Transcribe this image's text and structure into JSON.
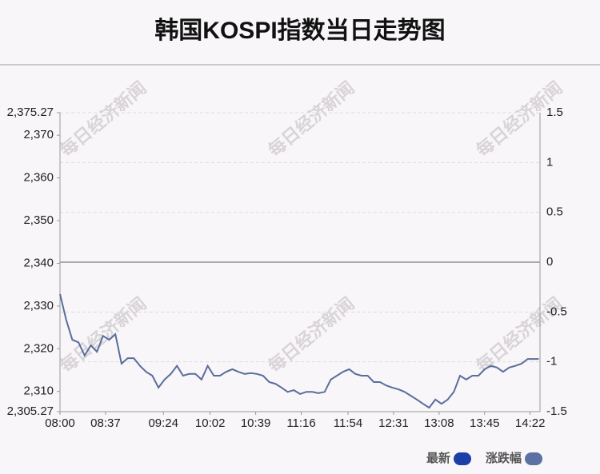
{
  "chart_data": {
    "type": "line",
    "title": "韩国KOSPI指数当日走势图",
    "watermark": "每日经济新闻",
    "x": [
      "08:00",
      "08:05",
      "08:10",
      "08:15",
      "08:20",
      "08:25",
      "08:30",
      "08:35",
      "08:40",
      "08:45",
      "08:50",
      "08:55",
      "09:00",
      "09:05",
      "09:10",
      "09:15",
      "09:20",
      "09:25",
      "09:30",
      "09:35",
      "09:40",
      "09:45",
      "09:50",
      "09:55",
      "10:00",
      "10:05",
      "10:10",
      "10:15",
      "10:20",
      "10:25",
      "10:30",
      "10:35",
      "10:40",
      "10:45",
      "10:50",
      "10:55",
      "11:00",
      "11:05",
      "11:10",
      "11:15",
      "11:20",
      "11:25",
      "11:30",
      "11:35",
      "11:40",
      "11:45",
      "11:50",
      "11:55",
      "12:00",
      "12:05",
      "12:10",
      "12:15",
      "12:20",
      "12:25",
      "12:30",
      "12:35",
      "12:40",
      "12:45",
      "12:50",
      "12:55",
      "13:00",
      "13:05",
      "13:10",
      "13:15",
      "13:20",
      "13:25",
      "13:30",
      "13:35",
      "13:40",
      "13:45",
      "13:50",
      "13:55",
      "14:00",
      "14:05",
      "14:10",
      "14:15",
      "14:20",
      "14:25",
      "14:29"
    ],
    "series": [
      {
        "name": "最新",
        "color": "#5a6d9c",
        "values": [
          2332.8,
          2326.8,
          2322.1,
          2321.5,
          2318.4,
          2320.8,
          2319.3,
          2323.0,
          2322.1,
          2323.4,
          2316.5,
          2317.8,
          2317.8,
          2316.0,
          2314.6,
          2313.7,
          2310.9,
          2312.8,
          2314.1,
          2316.0,
          2313.7,
          2314.1,
          2314.1,
          2312.8,
          2316.0,
          2313.7,
          2313.7,
          2314.6,
          2315.2,
          2314.6,
          2314.1,
          2314.3,
          2314.1,
          2313.7,
          2312.2,
          2311.8,
          2310.9,
          2309.9,
          2310.3,
          2309.4,
          2309.9,
          2309.9,
          2309.6,
          2309.9,
          2312.8,
          2313.7,
          2314.6,
          2315.2,
          2314.1,
          2313.7,
          2313.7,
          2312.2,
          2312.2,
          2311.4,
          2310.9,
          2310.5,
          2309.9,
          2309.0,
          2308.1,
          2307.1,
          2306.2,
          2308.1,
          2307.1,
          2308.1,
          2309.9,
          2313.7,
          2312.8,
          2313.7,
          2313.7,
          2315.2,
          2316.0,
          2315.6,
          2314.6,
          2315.6,
          2316.0,
          2316.5,
          2317.6,
          2317.6,
          2317.6
        ]
      }
    ],
    "legend": [
      {
        "name": "最新",
        "color": "#1b3fa6"
      },
      {
        "name": "涨跌幅",
        "color": "#5b70a3"
      }
    ],
    "xlim": [
      "08:00",
      "14:30"
    ],
    "xticks": [
      "08:00",
      "08:37",
      "09:24",
      "10:02",
      "10:39",
      "11:16",
      "11:54",
      "12:31",
      "13:08",
      "13:45",
      "14:22"
    ],
    "ylim": [
      2305.27,
      2375.27
    ],
    "yticks": [
      {
        "value": 2305.27,
        "label": "2,305.27"
      },
      {
        "value": 2310,
        "label": "2,310"
      },
      {
        "value": 2320,
        "label": "2,320"
      },
      {
        "value": 2330,
        "label": "2,330"
      },
      {
        "value": 2340,
        "label": "2,340"
      },
      {
        "value": 2350,
        "label": "2,350"
      },
      {
        "value": 2360,
        "label": "2,360"
      },
      {
        "value": 2370,
        "label": "2,370"
      },
      {
        "value": 2375.27,
        "label": "2,375.27"
      }
    ],
    "y2lim": [
      -1.5,
      1.5
    ],
    "y2ticks": [
      -1.5,
      -1,
      -0.5,
      0,
      0.5,
      1,
      1.5
    ],
    "grid": true
  }
}
